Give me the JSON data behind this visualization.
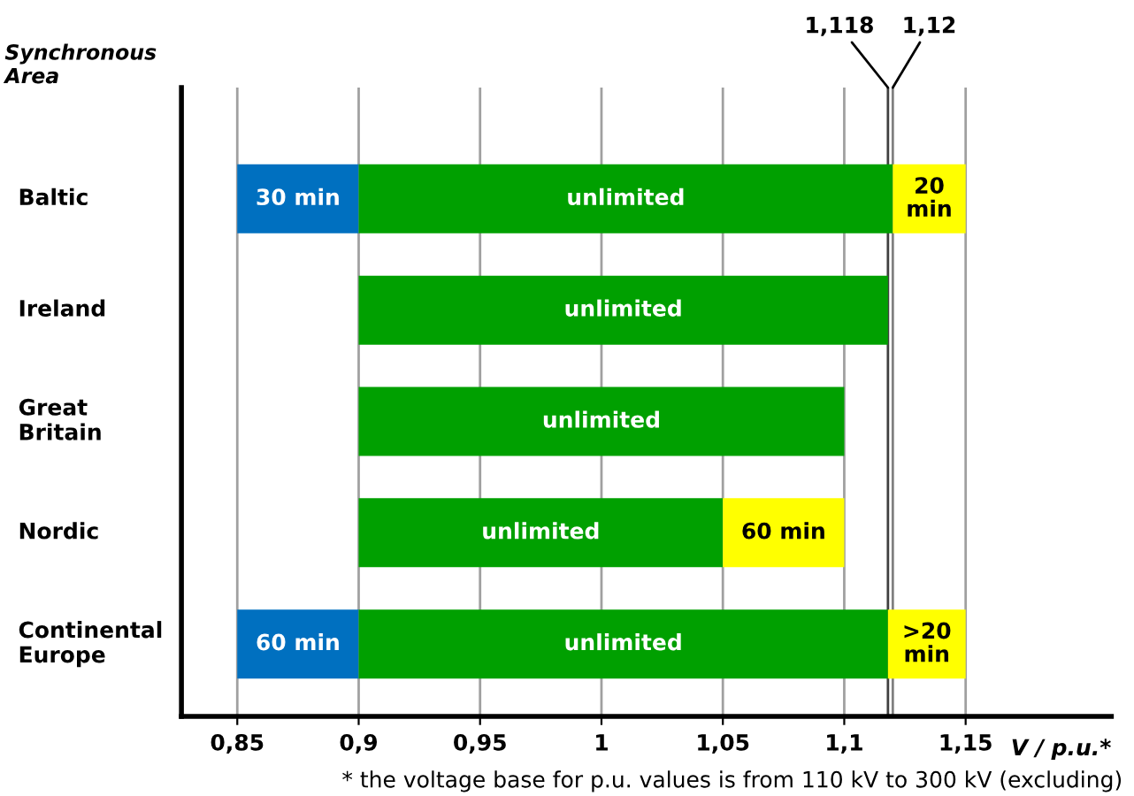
{
  "chart_data": {
    "type": "bar",
    "orientation": "horizontal",
    "ylabel": "Synchronous Area",
    "xlabel": "V / p.u.*",
    "categories": [
      "Baltic",
      "Ireland",
      "Great Britain",
      "Nordic",
      "Continental Europe"
    ],
    "series": [
      {
        "color": "#0070c0",
        "base": [
          0.85,
          null,
          null,
          null,
          0.85
        ],
        "values": [
          0.05,
          null,
          null,
          null,
          0.05
        ]
      },
      {
        "color": "#00a000",
        "base": [
          0.9,
          0.9,
          0.9,
          0.9,
          0.9
        ],
        "values": [
          0.22,
          0.218,
          0.2,
          0.15,
          0.218
        ]
      },
      {
        "color": "#ffff00",
        "base": [
          1.12,
          null,
          null,
          1.05,
          1.118
        ],
        "values": [
          0.03,
          null,
          null,
          0.05,
          0.032
        ]
      }
    ],
    "xlim": [
      0.827,
      1.21
    ],
    "xticks": [
      {
        "value": 0.85,
        "label": "0,85"
      },
      {
        "value": 0.9,
        "label": "0,9"
      },
      {
        "value": 0.95,
        "label": "0,95"
      },
      {
        "value": 1,
        "label": "1"
      },
      {
        "value": 1.05,
        "label": "1,05"
      },
      {
        "value": 1.1,
        "label": "1,1"
      },
      {
        "value": 1.15,
        "label": "1,15"
      }
    ],
    "ref_lines": [
      {
        "axis": "x",
        "value": 1.118,
        "label": "1,118",
        "color": "#404040"
      },
      {
        "axis": "x",
        "value": 1.12,
        "label": "1,12",
        "color": "#808080"
      }
    ],
    "grid": "x",
    "legend": false,
    "annotations": [
      "30 min",
      "unlimited",
      "20\nmin",
      "unlimited",
      "unlimited",
      "unlimited",
      "60 min",
      "60 min",
      "unlimited",
      ">20\nmin",
      "* the voltage base for p.u. values is from 110 kV to 300 kV (excluding)"
    ]
  }
}
